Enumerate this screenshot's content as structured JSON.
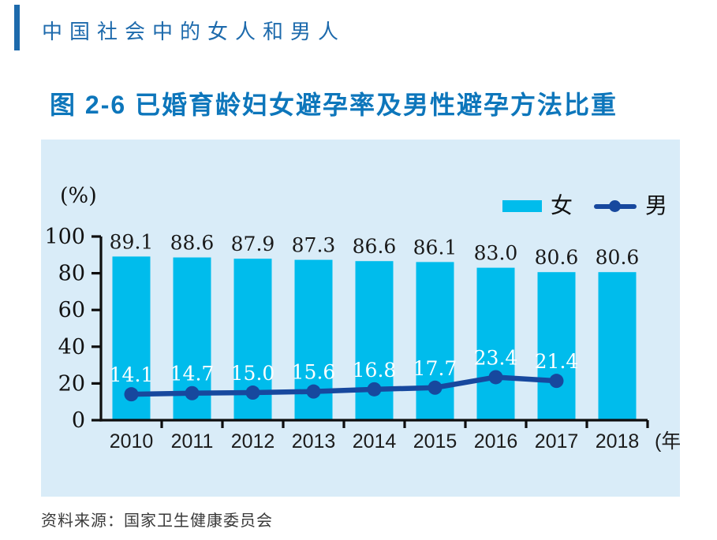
{
  "page": {
    "header": "中国社会中的女人和男人",
    "figure_title": "图 2-6  已婚育龄妇女避孕率及男性避孕方法比重",
    "source": "资料来源：国家卫生健康委员会"
  },
  "colors": {
    "header_blue": "#1d6aac",
    "title_blue": "#0d76bb",
    "panel_background": "#d9ecf8",
    "bar_cyan": "#00bcec",
    "line_dark_blue": "#17489e",
    "axis_black": "#0e0e0e"
  },
  "chart_data": {
    "type": "bar",
    "subtype": "bar-line-combo",
    "title": "图 2-6  已婚育龄妇女避孕率及男性避孕方法比重",
    "categories": [
      "2010",
      "2011",
      "2012",
      "2013",
      "2014",
      "2015",
      "2016",
      "2017",
      "2018"
    ],
    "series": [
      {
        "name": "女",
        "type": "bar",
        "color": "#00bcec",
        "values": [
          89.1,
          88.6,
          87.9,
          87.3,
          86.6,
          86.1,
          83.0,
          80.6,
          80.6
        ]
      },
      {
        "name": "男",
        "type": "line",
        "color": "#17489e",
        "values": [
          14.1,
          14.7,
          15.0,
          15.6,
          16.8,
          17.7,
          23.4,
          21.4,
          null
        ]
      }
    ],
    "unit_label": "(%)",
    "x_unit_label": "(年)",
    "xlabel": "",
    "ylabel": "",
    "ylim": [
      0,
      100
    ],
    "yticks": [
      0,
      20,
      40,
      60,
      80,
      100
    ],
    "grid": false,
    "legend_position": "top-right",
    "value_labels": "one-decimal"
  }
}
